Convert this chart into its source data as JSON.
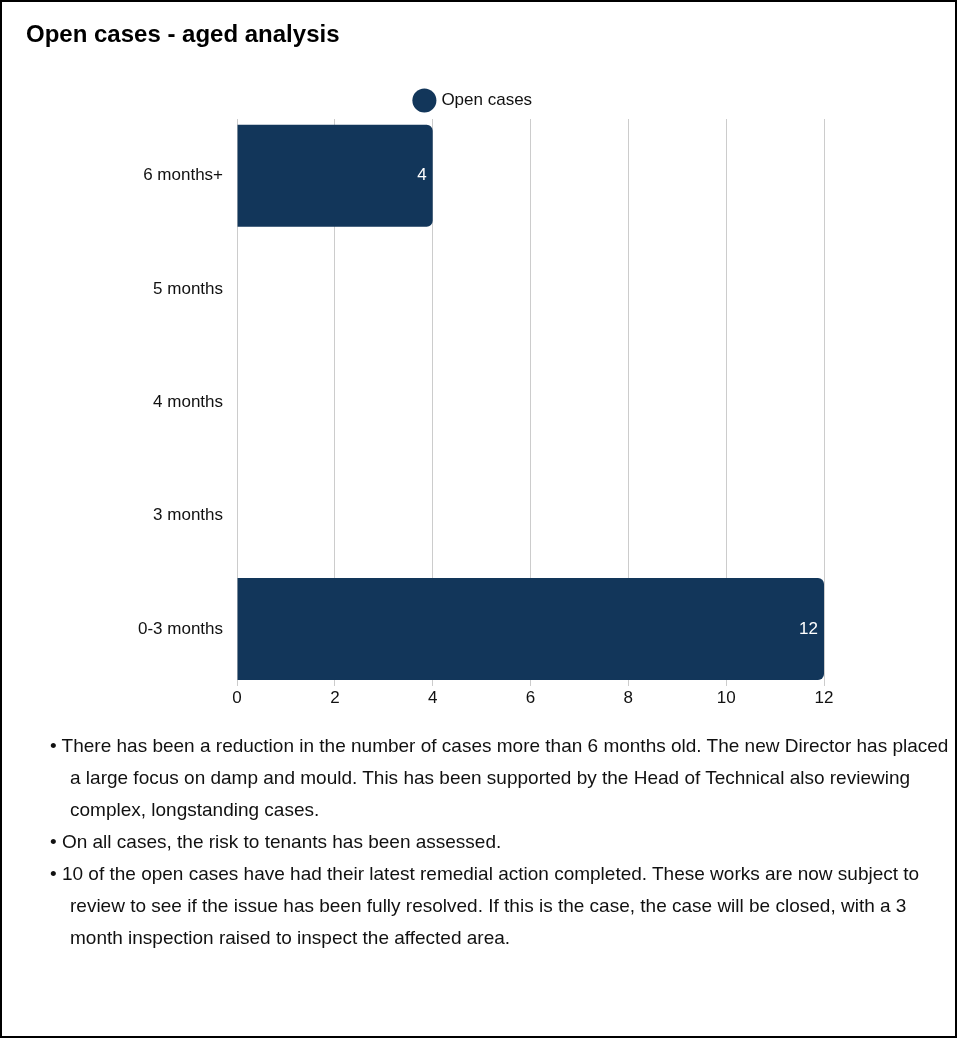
{
  "chart_data": {
    "type": "bar",
    "orientation": "horizontal",
    "title": "Open cases - aged analysis",
    "categories": [
      "6 months+",
      "5 months",
      "4 months",
      "3 months",
      "0-3 months"
    ],
    "series": [
      {
        "name": "Open cases",
        "color": "#12365a",
        "values": [
          4,
          0,
          0,
          0,
          12
        ]
      }
    ],
    "value_labels": [
      "4",
      null,
      null,
      null,
      "12"
    ],
    "xlim": [
      0,
      12
    ],
    "xticks": [
      0,
      2,
      4,
      6,
      8,
      10,
      12
    ],
    "grid": "x",
    "legend": "top",
    "annotations": [
      "• There has been a reduction in the number of cases more than 6 months old. The new Director has placed a large focus on damp and mould. This has been supported by the Head of Technical also reviewing complex, longstanding cases.",
      "• On all cases, the risk to tenants has been assessed.",
      "• 10 of the open cases have had their latest remedial action completed. These works are now subject to review to see if the issue has been fully resolved. If this is the case, the case will be closed, with a 3 month inspection raised to inspect the affected area."
    ]
  }
}
